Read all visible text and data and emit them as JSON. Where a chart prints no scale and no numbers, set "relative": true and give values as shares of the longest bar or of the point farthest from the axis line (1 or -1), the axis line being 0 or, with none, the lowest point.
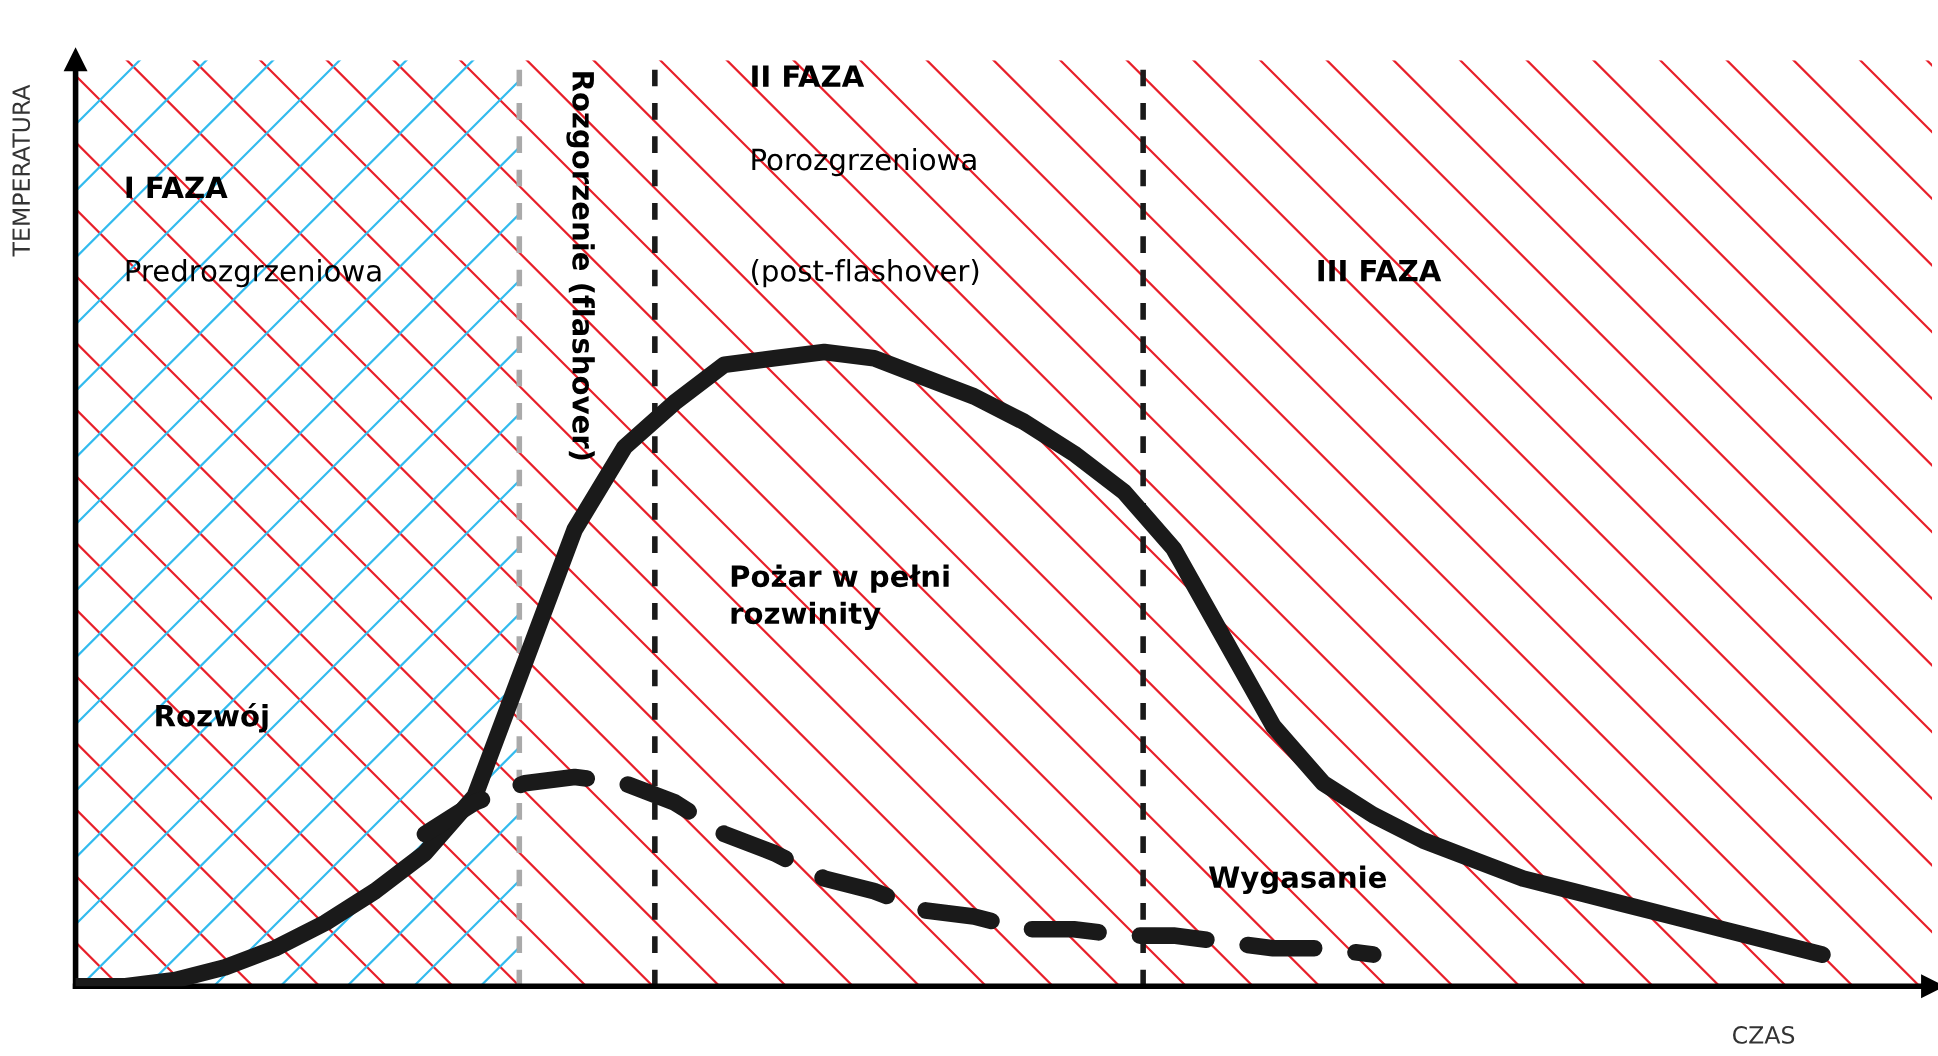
{
  "chart_data": {
    "type": "line",
    "relative": true,
    "xlabel": "CZAS",
    "ylabel": "TEMPERATURA",
    "categories": [
      null,
      null,
      null,
      null,
      null,
      null,
      null,
      null,
      null,
      null,
      null,
      null,
      null,
      null,
      null,
      null,
      null,
      null,
      null,
      null,
      null,
      null,
      null,
      null,
      null,
      null,
      null,
      null,
      null,
      null,
      null,
      null,
      null,
      null,
      null,
      null
    ],
    "series": [
      {
        "color": "#1a1a1a",
        "line_style": "solid",
        "values": [
          0,
          0,
          0.01,
          0.03,
          0.06,
          0.1,
          0.15,
          0.21,
          0.3,
          0.51,
          0.72,
          0.85,
          0.92,
          0.98,
          0.99,
          1.0,
          0.99,
          0.96,
          0.93,
          0.89,
          0.84,
          0.78,
          0.69,
          0.55,
          0.41,
          0.32,
          0.27,
          0.23,
          0.2,
          0.17,
          0.15,
          0.13,
          0.11,
          0.09,
          0.07,
          0.05
        ]
      },
      {
        "color": "#1a1a1a",
        "line_style": "dashed",
        "values": [
          null,
          null,
          null,
          null,
          null,
          null,
          null,
          0.24,
          0.29,
          0.32,
          0.33,
          0.32,
          0.29,
          0.24,
          0.21,
          0.17,
          0.15,
          0.12,
          0.11,
          0.09,
          0.09,
          0.08,
          0.08,
          0.07,
          0.06,
          0.06,
          0.05,
          null,
          null,
          null,
          null,
          null,
          null,
          null,
          null,
          null
        ]
      }
    ],
    "annotations": [
      "I FAZA",
      "Predrozgrzeniowa",
      "II FAZA",
      "Porozgrzeniowa",
      "(post-flashover)",
      "III FAZA",
      "Pożar w pełni\nrozwinity",
      "Rozwój",
      "Wygasanie",
      "Rozgorzenie (flashover)"
    ],
    "legend": false,
    "marker": "none"
  }
}
